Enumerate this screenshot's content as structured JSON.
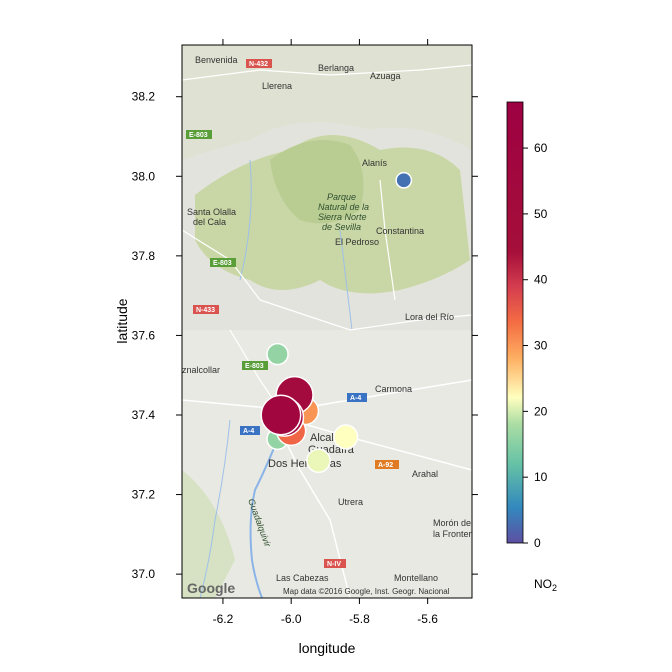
{
  "chart_data": {
    "type": "scatter",
    "title": "",
    "xlabel": "longitude",
    "ylabel": "latitude",
    "xlim": [
      -6.32,
      -5.47
    ],
    "ylim": [
      36.94,
      38.33
    ],
    "xticks": [
      -6.2,
      -6.0,
      -5.8,
      -5.6
    ],
    "yticks": [
      37.0,
      37.2,
      37.4,
      37.6,
      37.8,
      38.0,
      38.2
    ],
    "xtick_labels": [
      "-6.2",
      "-6.0",
      "-5.8",
      "-5.6"
    ],
    "ytick_labels": [
      "37.0",
      "37.2",
      "37.4",
      "37.6",
      "37.8",
      "38.0",
      "38.2"
    ],
    "colorbar": {
      "title_main": "NO",
      "title_sub": "2",
      "min": 0,
      "max": 67,
      "ticks": [
        0,
        10,
        20,
        30,
        40,
        50,
        60
      ],
      "tick_labels": [
        "0",
        "10",
        "20",
        "30",
        "40",
        "50",
        "60"
      ]
    },
    "points": [
      {
        "lon": -5.67,
        "lat": 37.99,
        "value": 3
      },
      {
        "lon": -6.04,
        "lat": 37.553,
        "value": 16
      },
      {
        "lon": -5.99,
        "lat": 37.45,
        "value": 52
      },
      {
        "lon": -5.96,
        "lat": 37.41,
        "value": 30
      },
      {
        "lon": -5.97,
        "lat": 37.43,
        "value": 22
      },
      {
        "lon": -5.98,
        "lat": 37.41,
        "value": 16
      },
      {
        "lon": -6.04,
        "lat": 37.34,
        "value": 16
      },
      {
        "lon": -5.84,
        "lat": 37.345,
        "value": 22
      },
      {
        "lon": -5.92,
        "lat": 37.285,
        "value": 21
      },
      {
        "lon": -6.0,
        "lat": 37.36,
        "value": 34
      },
      {
        "lon": -6.02,
        "lat": 37.395,
        "value": 55
      },
      {
        "lon": -6.03,
        "lat": 37.4,
        "value": 58
      }
    ]
  },
  "map": {
    "places": [
      {
        "name": "Benvenida"
      },
      {
        "name": "Berlanga"
      },
      {
        "name": "Azuaga"
      },
      {
        "name": "Llerena"
      },
      {
        "name": "Alanís"
      },
      {
        "name": "Santa Olalla"
      },
      {
        "name": "del Cala"
      },
      {
        "name": "Constantina"
      },
      {
        "name": "El Pedroso"
      },
      {
        "name": "Lora del Río"
      },
      {
        "name": "znalcollar"
      },
      {
        "name": "Carmona"
      },
      {
        "name": "Alcalá de"
      },
      {
        "name": "Guadaíra"
      },
      {
        "name": "Dos Hermanas"
      },
      {
        "name": "Arahal"
      },
      {
        "name": "Utrera"
      },
      {
        "name": "Morón de"
      },
      {
        "name": "la Fronter"
      },
      {
        "name": "Las Cabezas"
      },
      {
        "name": "Montellano"
      }
    ],
    "park": [
      "Parque",
      "Natural de la",
      "Sierra Norte",
      "de Sevilla"
    ],
    "river": "Guadalquivir",
    "roads": [
      {
        "label": "N-432",
        "color": "#d9534f"
      },
      {
        "label": "E-803",
        "color": "#5a9e3a"
      },
      {
        "label": "E-803",
        "color": "#5a9e3a"
      },
      {
        "label": "N-433",
        "color": "#d9534f"
      },
      {
        "label": "E-803",
        "color": "#5a9e3a"
      },
      {
        "label": "A-4",
        "color": "#3b73c4"
      },
      {
        "label": "A-4",
        "color": "#3b73c4"
      },
      {
        "label": "A-92",
        "color": "#e07b24"
      },
      {
        "label": "N-IV",
        "color": "#d9534f"
      }
    ],
    "attribution": "Map data ©2016 Google, Inst. Geogr. Nacional",
    "logo": "Google"
  }
}
